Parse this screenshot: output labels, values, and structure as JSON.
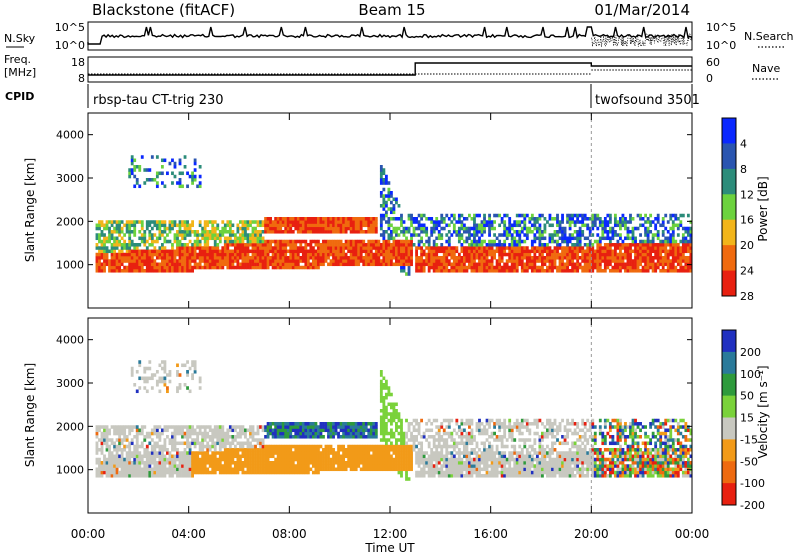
{
  "header": {
    "station": "Blackstone (fitACF)",
    "beam": "Beam 15",
    "date": "01/Mar/2014"
  },
  "panels": {
    "nsky": {
      "left_label": "N.Sky",
      "right_label": "N.Search",
      "left_ticks": [
        "10^5",
        "10^0"
      ],
      "right_ticks": [
        "10^5",
        "10^0"
      ]
    },
    "freq": {
      "left_label": "Freq.",
      "left_unit": "[MHz]",
      "right_label": "Nave",
      "left_ticks": [
        "18",
        "8"
      ],
      "right_ticks": [
        "60",
        "0"
      ],
      "freq_steps": [
        {
          "t0": 0,
          "t1": 13,
          "level": 0.25
        },
        {
          "t0": 13,
          "t1": 20,
          "level": 0.85
        },
        {
          "t0": 20,
          "t1": 24,
          "level": 0.7
        }
      ]
    },
    "cpid": {
      "label": "CPID",
      "programs": [
        {
          "start_hour": 0,
          "name": "rbsp-tau CT-trig 230"
        },
        {
          "start_hour": 20,
          "name": "twofsound 3501"
        }
      ]
    }
  },
  "chart_data": [
    {
      "type": "heatmap",
      "name": "power",
      "ylabel": "Slant Range [km]",
      "xlim": [
        0,
        24
      ],
      "ylim": [
        0,
        4500
      ],
      "yticks": [
        1000,
        2000,
        3000,
        4000
      ],
      "colorbar": {
        "label": "Power [dB]",
        "ticks": [
          "4",
          "8",
          "12",
          "16",
          "20",
          "24",
          "28"
        ],
        "colors": [
          "#0a28ff",
          "#2a55b0",
          "#2c8c7a",
          "#6cd23e",
          "#f2b51a",
          "#f06a0e",
          "#e82010"
        ]
      }
    },
    {
      "type": "heatmap",
      "name": "velocity",
      "ylabel": "Slant Range [km]",
      "xlabel": "Time UT",
      "xlim": [
        0,
        24
      ],
      "ylim": [
        0,
        4500
      ],
      "yticks": [
        1000,
        2000,
        3000,
        4000
      ],
      "xtick_labels": [
        "00:00",
        "04:00",
        "08:00",
        "12:00",
        "16:00",
        "20:00",
        "00:00"
      ],
      "colorbar": {
        "label": "Velocity [m s⁻¹]",
        "ticks": [
          "200",
          "100",
          "50",
          "15",
          "-15",
          "-50",
          "-100",
          "-200"
        ],
        "colors": [
          "#2030c0",
          "#2a7a9a",
          "#2e9a3c",
          "#7ad23a",
          "#c8c8c0",
          "#f29a18",
          "#ee6a10",
          "#e82010"
        ]
      }
    }
  ]
}
